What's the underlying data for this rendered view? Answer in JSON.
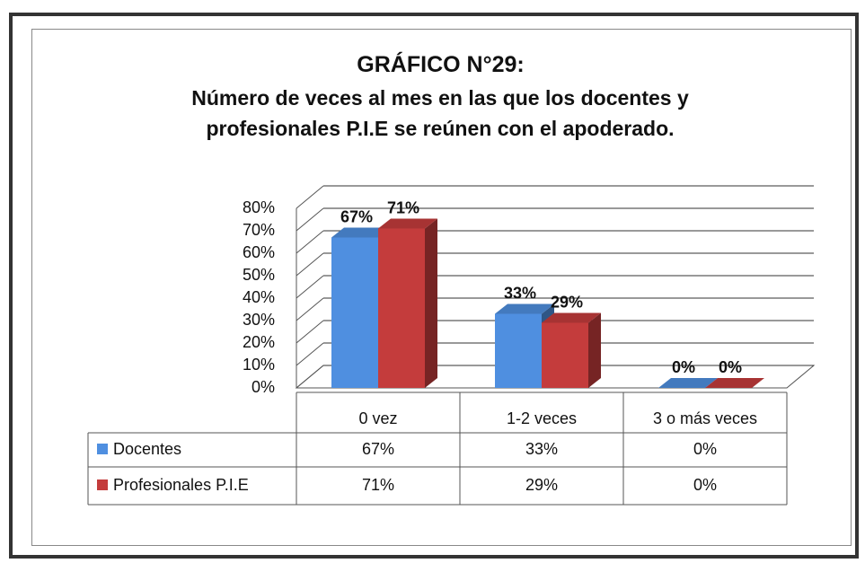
{
  "chart_data": {
    "type": "bar",
    "title": "GRÁFICO N°29:",
    "subtitle": "Número de veces al mes en las que los docentes y profesionales P.I.E se reúnen con el apoderado.",
    "categories": [
      "0 vez",
      "1-2 veces",
      "3 o más veces"
    ],
    "series": [
      {
        "name": "Docentes",
        "color": "#4f8fe0",
        "values": [
          67,
          33,
          0
        ],
        "value_labels": [
          "67%",
          "33%",
          "0%"
        ]
      },
      {
        "name": "Profesionales P.I.E",
        "color": "#c43c3c",
        "values": [
          71,
          29,
          0
        ],
        "value_labels": [
          "71%",
          "29%",
          "0%"
        ]
      }
    ],
    "ylim": [
      0,
      80
    ],
    "yticks": [
      {
        "value": 0,
        "label": "0%"
      },
      {
        "value": 10,
        "label": "10%"
      },
      {
        "value": 20,
        "label": "20%"
      },
      {
        "value": 30,
        "label": "30%"
      },
      {
        "value": 40,
        "label": "40%"
      },
      {
        "value": 50,
        "label": "50%"
      },
      {
        "value": 60,
        "label": "60%"
      },
      {
        "value": 70,
        "label": "70%"
      },
      {
        "value": 80,
        "label": "80%"
      }
    ],
    "grid": true
  }
}
